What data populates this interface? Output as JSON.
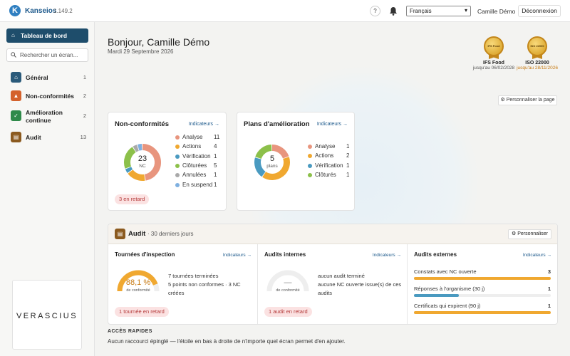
{
  "topbar": {
    "brand": "Kanseios",
    "version": "1.149.2",
    "help": "?",
    "language": "Français",
    "user": "Camille Démo",
    "logout": "Déconnexion"
  },
  "sidebar": {
    "dashboard": "Tableau de bord",
    "search_placeholder": "Rechercher un écran...",
    "items": [
      {
        "label": "Général",
        "count": "1",
        "color": "#2a5a7a"
      },
      {
        "label": "Non-conformités",
        "count": "2",
        "color": "#d4622c"
      },
      {
        "label": "Amélioration continue",
        "count": "2",
        "color": "#2f8a4a"
      },
      {
        "label": "Audit",
        "count": "13",
        "color": "#8b5a1f"
      }
    ],
    "company_logo": "VERASCIUS"
  },
  "main": {
    "greeting": "Bonjour, Camille Démo",
    "date": "Mardi 29 Septembre 2026",
    "certifications": [
      {
        "badge": "IFS Food",
        "name": "IFS Food",
        "until": "jusqu'au 06/02/2028",
        "warn": false
      },
      {
        "badge": "ISO 22000",
        "name": "ISO 22000",
        "until": "jusqu'au 28/11/2026",
        "warn": true
      }
    ],
    "personalize_page": "Personnaliser la page",
    "nc_card": {
      "title": "Non-conformités",
      "indicators": "Indicateurs →",
      "total": "23",
      "unit": "NC",
      "late": "3 en retard",
      "items": [
        {
          "label": "Analyse",
          "value": "11",
          "color": "#e8957e"
        },
        {
          "label": "Actions",
          "value": "4",
          "color": "#f0a830"
        },
        {
          "label": "Vérification",
          "value": "1",
          "color": "#4a9ac0"
        },
        {
          "label": "Clôturées",
          "value": "5",
          "color": "#8cc04a"
        },
        {
          "label": "Annulées",
          "value": "1",
          "color": "#a9a9a9"
        },
        {
          "label": "En suspend",
          "value": "1",
          "color": "#7fb0e0"
        }
      ]
    },
    "plans_card": {
      "title": "Plans d'amélioration",
      "indicators": "Indicateurs →",
      "total": "5",
      "unit": "plans",
      "items": [
        {
          "label": "Analyse",
          "value": "1",
          "color": "#e8957e"
        },
        {
          "label": "Actions",
          "value": "2",
          "color": "#f0a830"
        },
        {
          "label": "Vérification",
          "value": "1",
          "color": "#4a9ac0"
        },
        {
          "label": "Clôturés",
          "value": "1",
          "color": "#8cc04a"
        }
      ]
    },
    "audit": {
      "title": "Audit",
      "subtitle": "· 30 derniers jours",
      "personalize": "Personnaliser",
      "inspection": {
        "title": "Tournées d'inspection",
        "indicators": "Indicateurs →",
        "percent": "88,1 %",
        "percent_value": 0.881,
        "percent_label": "de conformité",
        "line1": "7 tournées terminées",
        "line2": "5 points non conformes · 3 NC créées",
        "late": "1 tournée en retard"
      },
      "internal": {
        "title": "Audits internes",
        "indicators": "Indicateurs →",
        "value": "—",
        "value_label": "de conformité",
        "line1": "aucun audit terminé",
        "line2": "aucune NC ouverte issue(s) de ces audits",
        "late": "1 audit en retard"
      },
      "external": {
        "title": "Audits externes",
        "indicators": "Indicateurs →",
        "rows": [
          {
            "label": "Constats avec NC ouverte",
            "value": "3",
            "fill": 1.0,
            "color": "#f0a830"
          },
          {
            "label": "Réponses à l'organisme (30 j)",
            "value": "1",
            "fill": 0.33,
            "color": "#4a9ac0"
          },
          {
            "label": "Certificats qui expirent (90 j)",
            "value": "1",
            "fill": 1.0,
            "color": "#f0a830"
          }
        ]
      }
    },
    "quick": {
      "title": "ACCÈS RAPIDES",
      "text": "Aucun raccourci épinglé — l'étoile en bas à droite de n'importe quel écran permet d'en ajouter."
    }
  }
}
